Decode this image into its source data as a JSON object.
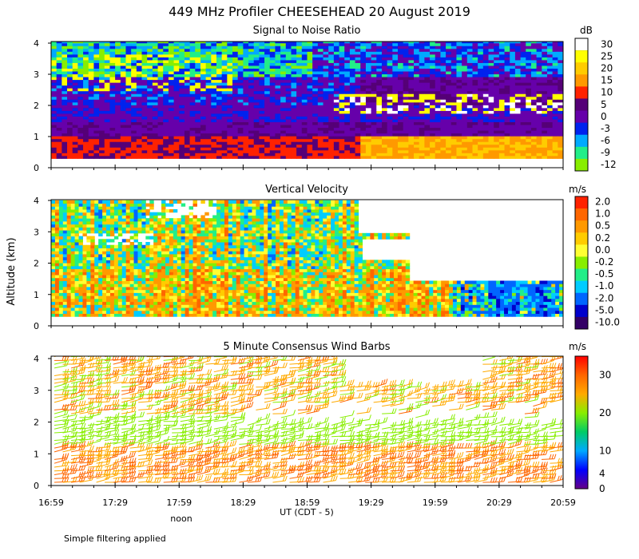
{
  "figure": {
    "title": "449 MHz Profiler CHEESEHEAD 20 August 2019",
    "ylabel": "Altitude (km)",
    "xlabel": "UT  (CDT - 5)",
    "noon_label": "noon",
    "footnote": "Simple filtering applied",
    "x_ticks": [
      "16:59",
      "17:29",
      "17:59",
      "18:29",
      "18:59",
      "19:29",
      "19:59",
      "20:29",
      "20:59"
    ],
    "y_ticks": [
      "0",
      "1",
      "2",
      "3",
      "4"
    ]
  },
  "chart_data": [
    {
      "type": "heatmap",
      "title": "Signal to Noise Ratio",
      "ylabel": "Altitude (km)",
      "xlim": [
        "16:59",
        "20:59"
      ],
      "ylim": [
        0,
        4.1
      ],
      "colorbar": {
        "unit": "dB",
        "levels": [
          30,
          25,
          20,
          15,
          10,
          5,
          0,
          -3,
          -6,
          -9,
          -12
        ],
        "colors": [
          "#ffffff",
          "#ffff00",
          "#ffcc00",
          "#ff9900",
          "#ff2200",
          "#550077",
          "#6600aa",
          "#0022ee",
          "#00aaff",
          "#22ee88",
          "#88ee00"
        ]
      },
      "features": [
        {
          "description": "strong return layer",
          "altitude_km": [
            0.3,
            0.9
          ],
          "value_db": 10
        },
        {
          "description": "enhanced layer after 19:40",
          "altitude_km": [
            0.3,
            1.1
          ],
          "value_db": 15
        },
        {
          "description": "elevated layer",
          "altitude_km": [
            1.5,
            2.7
          ],
          "value_db": 0
        }
      ]
    },
    {
      "type": "heatmap",
      "title": "Vertical Velocity",
      "ylabel": "Altitude (km)",
      "xlim": [
        "16:59",
        "20:59"
      ],
      "ylim": [
        0,
        4.1
      ],
      "colorbar": {
        "unit": "m/s",
        "levels": [
          2.0,
          1.0,
          0.5,
          0.2,
          0.0,
          -0.2,
          -0.5,
          -1.0,
          -2.0,
          -5.0,
          -10.0
        ],
        "colors": [
          "#ff2200",
          "#ff6600",
          "#ff9900",
          "#ffcc00",
          "#ffff33",
          "#88ee00",
          "#22ee88",
          "#00ccff",
          "#0066ff",
          "#0000cc",
          "#330066"
        ]
      }
    },
    {
      "type": "scatter",
      "title": "5 Minute Consensus Wind Barbs",
      "ylabel": "Altitude (km)",
      "xlim": [
        "16:59",
        "20:59"
      ],
      "ylim": [
        0,
        4.1
      ],
      "colorbar": {
        "unit": "m/s",
        "ticks": [
          30,
          20,
          10,
          4,
          0
        ],
        "colors": [
          "#ff0000",
          "#ff6600",
          "#ffaa00",
          "#88ee00",
          "#00cc66",
          "#00aaff",
          "#0000ff",
          "#660088"
        ]
      }
    }
  ]
}
